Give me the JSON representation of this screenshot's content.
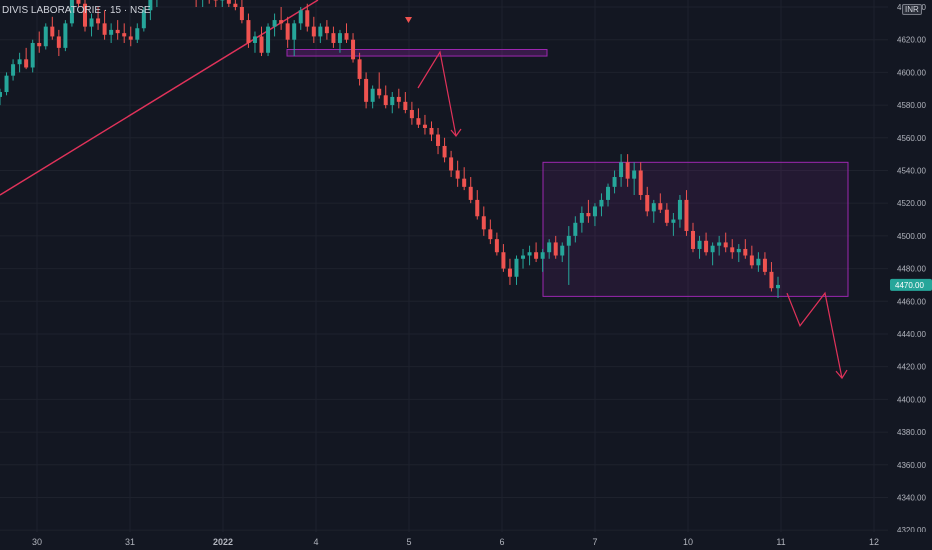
{
  "header": {
    "symbol_title": "DIVIS LABORATORIE · 15 · NSE",
    "currency": "INR"
  },
  "colors": {
    "background": "#131722",
    "grid": "#1e222d",
    "up": "#26a69a",
    "down": "#ef5350",
    "trendline": "#e0325a",
    "box_stroke": "#9c27b0",
    "price_tag": "#26a69a",
    "axis_text": "#b2b5be"
  },
  "chart_data": {
    "type": "candlestick",
    "title": "DIVIS LABORATORIE · 15 · NSE",
    "ylim": [
      4320,
      4640
    ],
    "y_ticks": [
      "4320.00",
      "4340.00",
      "4360.00",
      "4380.00",
      "4400.00",
      "4420.00",
      "4440.00",
      "4460.00",
      "4480.00",
      "4500.00",
      "4520.00",
      "4540.00",
      "4560.00",
      "4580.00",
      "4600.00",
      "4620.00",
      "4640.00"
    ],
    "x_ticks": [
      "30",
      "31",
      "2022",
      "4",
      "5",
      "6",
      "7",
      "10",
      "11",
      "12"
    ],
    "current_price": "4470.00",
    "grid": true,
    "annotations": {
      "trendline": "diagonal rising line",
      "resistance_zone": [
        4610,
        4614
      ],
      "range_box": [
        4463,
        4545
      ],
      "projection_arrow": [
        4465,
        4445,
        4465,
        4413
      ]
    },
    "candles": [
      [
        4585,
        4590,
        4580,
        4588
      ],
      [
        4588,
        4600,
        4586,
        4598
      ],
      [
        4598,
        4608,
        4595,
        4605
      ],
      [
        4605,
        4612,
        4600,
        4608
      ],
      [
        4608,
        4615,
        4602,
        4603
      ],
      [
        4603,
        4620,
        4600,
        4618
      ],
      [
        4618,
        4625,
        4612,
        4616
      ],
      [
        4616,
        4630,
        4614,
        4628
      ],
      [
        4628,
        4634,
        4620,
        4622
      ],
      [
        4622,
        4626,
        4610,
        4615
      ],
      [
        4615,
        4632,
        4613,
        4630
      ],
      [
        4630,
        4650,
        4628,
        4645
      ],
      [
        4645,
        4655,
        4640,
        4642
      ],
      [
        4642,
        4648,
        4625,
        4628
      ],
      [
        4628,
        4636,
        4622,
        4633
      ],
      [
        4633,
        4640,
        4626,
        4630
      ],
      [
        4630,
        4638,
        4620,
        4623
      ],
      [
        4623,
        4630,
        4618,
        4626
      ],
      [
        4626,
        4632,
        4620,
        4624
      ],
      [
        4624,
        4630,
        4618,
        4622
      ],
      [
        4622,
        4628,
        4616,
        4620
      ],
      [
        4620,
        4630,
        4618,
        4627
      ],
      [
        4627,
        4640,
        4625,
        4638
      ],
      [
        4638,
        4650,
        4632,
        4645
      ],
      [
        4645,
        4655,
        4640,
        4650
      ],
      [
        4650,
        4658,
        4645,
        4652
      ],
      [
        4652,
        4660,
        4648,
        4655
      ],
      [
        4655,
        4660,
        4650,
        4652
      ],
      [
        4652,
        4656,
        4646,
        4650
      ],
      [
        4650,
        4655,
        4645,
        4648
      ],
      [
        4648,
        4652,
        4640,
        4645
      ],
      [
        4645,
        4650,
        4640,
        4647
      ],
      [
        4647,
        4652,
        4642,
        4646
      ],
      [
        4646,
        4650,
        4640,
        4644
      ],
      [
        4644,
        4649,
        4640,
        4645
      ],
      [
        4645,
        4650,
        4640,
        4642
      ],
      [
        4642,
        4648,
        4638,
        4640
      ],
      [
        4640,
        4645,
        4630,
        4632
      ],
      [
        4632,
        4636,
        4615,
        4618
      ],
      [
        4618,
        4625,
        4612,
        4622
      ],
      [
        4622,
        4628,
        4610,
        4612
      ],
      [
        4612,
        4630,
        4610,
        4628
      ],
      [
        4628,
        4636,
        4622,
        4632
      ],
      [
        4632,
        4640,
        4626,
        4630
      ],
      [
        4630,
        4634,
        4615,
        4620
      ],
      [
        4620,
        4632,
        4610,
        4630
      ],
      [
        4630,
        4640,
        4626,
        4638
      ],
      [
        4638,
        4642,
        4625,
        4628
      ],
      [
        4628,
        4634,
        4618,
        4622
      ],
      [
        4622,
        4630,
        4618,
        4628
      ],
      [
        4628,
        4632,
        4620,
        4624
      ],
      [
        4624,
        4628,
        4615,
        4618
      ],
      [
        4618,
        4626,
        4612,
        4624
      ],
      [
        4624,
        4630,
        4618,
        4620
      ],
      [
        4620,
        4624,
        4606,
        4608
      ],
      [
        4608,
        4612,
        4592,
        4596
      ],
      [
        4596,
        4600,
        4578,
        4582
      ],
      [
        4582,
        4592,
        4578,
        4590
      ],
      [
        4590,
        4600,
        4584,
        4586
      ],
      [
        4586,
        4592,
        4578,
        4580
      ],
      [
        4580,
        4588,
        4575,
        4585
      ],
      [
        4585,
        4590,
        4578,
        4582
      ],
      [
        4582,
        4588,
        4575,
        4577
      ],
      [
        4577,
        4582,
        4568,
        4572
      ],
      [
        4572,
        4578,
        4566,
        4568
      ],
      [
        4568,
        4574,
        4562,
        4566
      ],
      [
        4566,
        4570,
        4558,
        4562
      ],
      [
        4562,
        4566,
        4550,
        4555
      ],
      [
        4555,
        4560,
        4545,
        4548
      ],
      [
        4548,
        4552,
        4536,
        4540
      ],
      [
        4540,
        4546,
        4530,
        4535
      ],
      [
        4535,
        4542,
        4528,
        4530
      ],
      [
        4530,
        4536,
        4520,
        4522
      ],
      [
        4522,
        4528,
        4510,
        4512
      ],
      [
        4512,
        4518,
        4500,
        4504
      ],
      [
        4504,
        4510,
        4495,
        4498
      ],
      [
        4498,
        4502,
        4488,
        4490
      ],
      [
        4490,
        4495,
        4478,
        4480
      ],
      [
        4480,
        4486,
        4470,
        4475
      ],
      [
        4475,
        4488,
        4470,
        4486
      ],
      [
        4486,
        4492,
        4480,
        4488
      ],
      [
        4488,
        4494,
        4482,
        4490
      ],
      [
        4490,
        4496,
        4484,
        4486
      ],
      [
        4486,
        4492,
        4478,
        4490
      ],
      [
        4490,
        4498,
        4486,
        4496
      ],
      [
        4496,
        4500,
        4486,
        4488
      ],
      [
        4488,
        4496,
        4484,
        4494
      ],
      [
        4494,
        4506,
        4470,
        4500
      ],
      [
        4500,
        4512,
        4496,
        4508
      ],
      [
        4508,
        4518,
        4502,
        4514
      ],
      [
        4514,
        4522,
        4508,
        4512
      ],
      [
        4512,
        4520,
        4506,
        4518
      ],
      [
        4518,
        4526,
        4512,
        4522
      ],
      [
        4522,
        4532,
        4518,
        4530
      ],
      [
        4530,
        4540,
        4526,
        4536
      ],
      [
        4536,
        4550,
        4530,
        4545
      ],
      [
        4545,
        4550,
        4530,
        4535
      ],
      [
        4535,
        4545,
        4525,
        4540
      ],
      [
        4540,
        4545,
        4522,
        4525
      ],
      [
        4525,
        4530,
        4512,
        4515
      ],
      [
        4515,
        4522,
        4508,
        4520
      ],
      [
        4520,
        4526,
        4514,
        4516
      ],
      [
        4516,
        4520,
        4506,
        4508
      ],
      [
        4508,
        4514,
        4500,
        4510
      ],
      [
        4510,
        4525,
        4505,
        4522
      ],
      [
        4522,
        4528,
        4500,
        4503
      ],
      [
        4503,
        4508,
        4490,
        4492
      ],
      [
        4492,
        4500,
        4486,
        4497
      ],
      [
        4497,
        4502,
        4488,
        4490
      ],
      [
        4490,
        4496,
        4482,
        4494
      ],
      [
        4494,
        4500,
        4488,
        4496
      ],
      [
        4496,
        4502,
        4490,
        4493
      ],
      [
        4493,
        4498,
        4486,
        4490
      ],
      [
        4490,
        4495,
        4484,
        4492
      ],
      [
        4492,
        4498,
        4486,
        4488
      ],
      [
        4488,
        4494,
        4480,
        4482
      ],
      [
        4482,
        4490,
        4478,
        4486
      ],
      [
        4486,
        4490,
        4476,
        4478
      ],
      [
        4478,
        4484,
        4466,
        4468
      ],
      [
        4468,
        4475,
        4462,
        4470
      ]
    ]
  }
}
